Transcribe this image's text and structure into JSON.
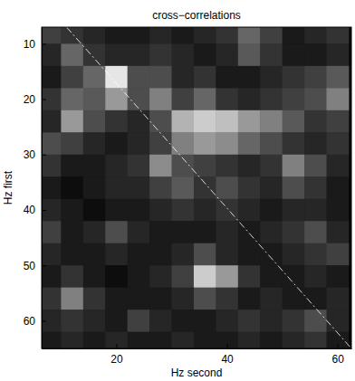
{
  "chart_data": {
    "type": "heatmap",
    "title": "cross−correlations",
    "x_label": "Hz second",
    "y_label": "Hz first",
    "xlim": [
      6.5,
      62.5
    ],
    "ylim": [
      7,
      65
    ],
    "xticks": [
      20,
      40,
      60
    ],
    "yticks": [
      10,
      20,
      30,
      40,
      50,
      60
    ],
    "zlim": [
      0,
      1
    ],
    "x": [
      8,
      12,
      16,
      20,
      24,
      28,
      32,
      36,
      40,
      44,
      48,
      52,
      56,
      60
    ],
    "y": [
      8,
      12,
      16,
      20,
      24,
      28,
      32,
      36,
      40,
      44,
      48,
      52,
      56,
      60,
      64
    ],
    "z": [
      [
        0.25,
        0.2,
        0.15,
        0.1,
        0.1,
        0.15,
        0.1,
        0.15,
        0.2,
        0.4,
        0.25,
        0.1,
        0.15,
        0.2
      ],
      [
        0.15,
        0.4,
        0.2,
        0.15,
        0.15,
        0.2,
        0.15,
        0.1,
        0.15,
        0.35,
        0.2,
        0.1,
        0.1,
        0.15
      ],
      [
        0.1,
        0.25,
        0.4,
        0.9,
        0.3,
        0.3,
        0.15,
        0.2,
        0.1,
        0.1,
        0.15,
        0.2,
        0.25,
        0.35
      ],
      [
        0.2,
        0.4,
        0.35,
        0.6,
        0.3,
        0.5,
        0.25,
        0.4,
        0.2,
        0.15,
        0.2,
        0.25,
        0.3,
        0.5
      ],
      [
        0.15,
        0.6,
        0.3,
        0.2,
        0.15,
        0.3,
        0.7,
        0.8,
        0.75,
        0.6,
        0.5,
        0.35,
        0.2,
        0.25
      ],
      [
        0.3,
        0.25,
        0.15,
        0.1,
        0.15,
        0.25,
        0.5,
        0.6,
        0.55,
        0.4,
        0.3,
        0.2,
        0.15,
        0.2
      ],
      [
        0.2,
        0.1,
        0.1,
        0.15,
        0.2,
        0.55,
        0.3,
        0.25,
        0.2,
        0.15,
        0.2,
        0.5,
        0.3,
        0.15
      ],
      [
        0.1,
        0.05,
        0.1,
        0.15,
        0.15,
        0.25,
        0.35,
        0.2,
        0.3,
        0.2,
        0.15,
        0.3,
        0.2,
        0.1
      ],
      [
        0.15,
        0.1,
        0.05,
        0.1,
        0.1,
        0.15,
        0.2,
        0.15,
        0.2,
        0.15,
        0.1,
        0.15,
        0.15,
        0.1
      ],
      [
        0.25,
        0.1,
        0.15,
        0.3,
        0.15,
        0.1,
        0.1,
        0.1,
        0.15,
        0.1,
        0.15,
        0.2,
        0.3,
        0.15
      ],
      [
        0.15,
        0.1,
        0.1,
        0.15,
        0.1,
        0.1,
        0.15,
        0.3,
        0.15,
        0.1,
        0.1,
        0.15,
        0.2,
        0.25
      ],
      [
        0.1,
        0.2,
        0.1,
        0.05,
        0.1,
        0.15,
        0.25,
        0.8,
        0.6,
        0.2,
        0.1,
        0.1,
        0.15,
        0.1
      ],
      [
        0.2,
        0.5,
        0.2,
        0.1,
        0.1,
        0.1,
        0.15,
        0.3,
        0.2,
        0.1,
        0.15,
        0.1,
        0.1,
        0.15
      ],
      [
        0.15,
        0.2,
        0.15,
        0.1,
        0.25,
        0.15,
        0.1,
        0.1,
        0.15,
        0.2,
        0.15,
        0.2,
        0.3,
        0.15
      ],
      [
        0.1,
        0.15,
        0.1,
        0.15,
        0.1,
        0.1,
        0.15,
        0.1,
        0.1,
        0.15,
        0.1,
        0.15,
        0.2,
        0.1
      ]
    ],
    "series": [
      {
        "type": "line",
        "x": [
          11,
          62.5
        ],
        "values": [
          7,
          65
        ],
        "color": "#ffffff",
        "line_style": "dashdot"
      }
    ]
  }
}
